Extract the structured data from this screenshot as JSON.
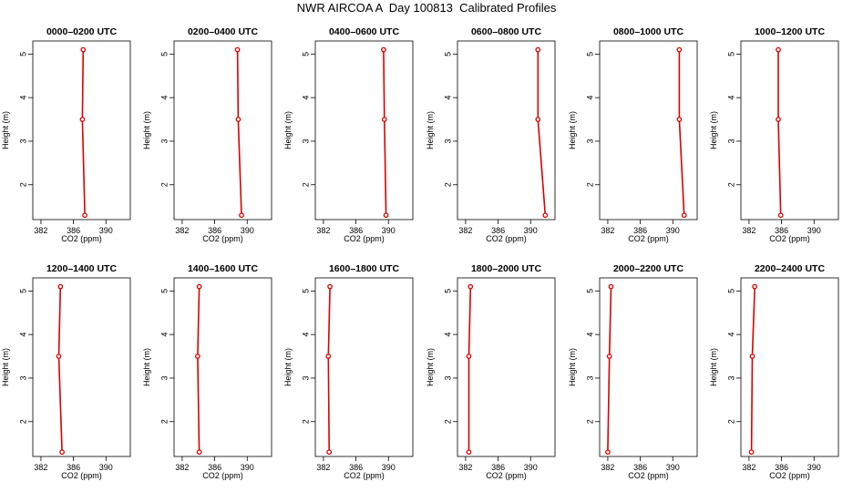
{
  "title": "NWR AIRCOA A  Day 100813  Calibrated Profiles",
  "colors": {
    "profile": "#dd0000",
    "axis": "#000000"
  },
  "chart_data": {
    "type": "line",
    "xlabel": "CO2 (ppm)",
    "ylabel": "Height (m)",
    "xlim": [
      381,
      393
    ],
    "ylim": [
      1.2,
      5.3
    ],
    "xticks": [
      382,
      386,
      390
    ],
    "yticks": [
      2,
      3,
      4,
      5
    ],
    "heights": [
      5.1,
      3.5,
      1.3
    ],
    "panels": [
      {
        "title": "0000–0200 UTC",
        "co2": [
          387.2,
          387.1,
          387.4
        ]
      },
      {
        "title": "0200–0400 UTC",
        "co2": [
          388.8,
          388.9,
          389.3
        ]
      },
      {
        "title": "0400–0600 UTC",
        "co2": [
          389.4,
          389.5,
          389.7
        ]
      },
      {
        "title": "0600–0800 UTC",
        "co2": [
          390.9,
          390.9,
          391.8
        ]
      },
      {
        "title": "0800–1000 UTC",
        "co2": [
          390.8,
          390.8,
          391.4
        ]
      },
      {
        "title": "1000–1200 UTC",
        "co2": [
          385.6,
          385.6,
          385.9
        ]
      },
      {
        "title": "1200–1400 UTC",
        "co2": [
          384.4,
          384.2,
          384.6
        ]
      },
      {
        "title": "1400–1600 UTC",
        "co2": [
          384.1,
          383.9,
          384.1
        ]
      },
      {
        "title": "1600–1800 UTC",
        "co2": [
          382.8,
          382.6,
          382.7
        ]
      },
      {
        "title": "1800–2000 UTC",
        "co2": [
          382.6,
          382.4,
          382.4
        ]
      },
      {
        "title": "2000–2200 UTC",
        "co2": [
          382.4,
          382.2,
          382.0
        ]
      },
      {
        "title": "2200–2400 UTC",
        "co2": [
          382.7,
          382.4,
          382.3
        ]
      }
    ]
  }
}
